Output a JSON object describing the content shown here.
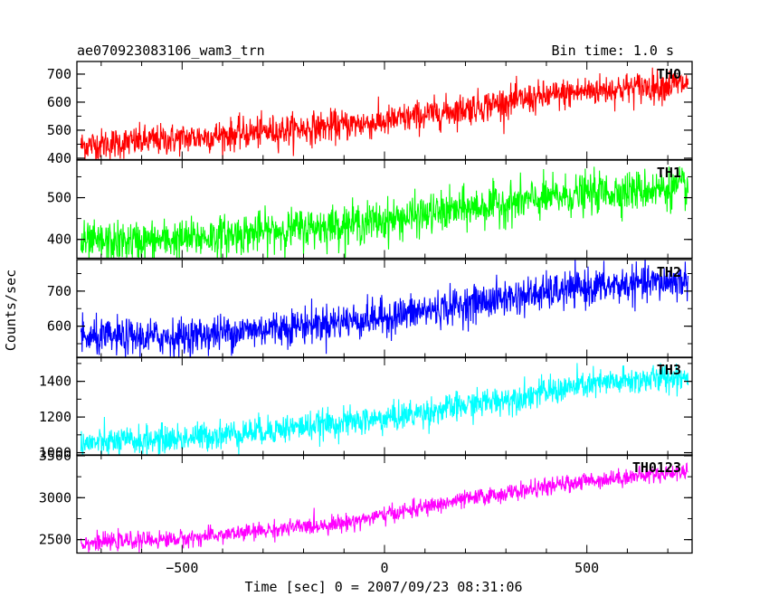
{
  "header": {
    "title": "ae070923083106_wam3_trn",
    "bin_time": "Bin time: 1.0 s"
  },
  "chart_data": [
    {
      "type": "line",
      "series": [
        {
          "name": "TH0",
          "color": "#ff0000"
        }
      ],
      "x_range": [
        -760,
        760
      ],
      "ylim": [
        395,
        745
      ],
      "yticks": [
        400,
        500,
        600,
        700
      ],
      "trend": {
        "x": [
          -750,
          -500,
          0,
          300,
          500,
          750
        ],
        "y": [
          445,
          470,
          530,
          600,
          640,
          665
        ]
      },
      "noise": 28
    },
    {
      "type": "line",
      "series": [
        {
          "name": "TH1",
          "color": "#00ff00"
        }
      ],
      "x_range": [
        -760,
        760
      ],
      "ylim": [
        355,
        590
      ],
      "yticks": [
        400,
        500
      ],
      "trend": {
        "x": [
          -750,
          -500,
          0,
          250,
          500,
          750
        ],
        "y": [
          390,
          400,
          445,
          480,
          510,
          525
        ]
      },
      "noise": 24
    },
    {
      "type": "line",
      "series": [
        {
          "name": "TH2",
          "color": "#0000ff"
        }
      ],
      "x_range": [
        -760,
        760
      ],
      "ylim": [
        510,
        790
      ],
      "yticks": [
        600,
        700
      ],
      "trend": {
        "x": [
          -750,
          -500,
          0,
          300,
          500,
          750
        ],
        "y": [
          565,
          570,
          625,
          680,
          710,
          730
        ]
      },
      "noise": 26
    },
    {
      "type": "line",
      "series": [
        {
          "name": "TH3",
          "color": "#00ffff"
        }
      ],
      "x_range": [
        -760,
        760
      ],
      "ylim": [
        985,
        1535
      ],
      "yticks": [
        1000,
        1200,
        1400
      ],
      "trend": {
        "x": [
          -750,
          -500,
          0,
          300,
          500,
          750
        ],
        "y": [
          1050,
          1080,
          1190,
          1300,
          1380,
          1430
        ]
      },
      "noise": 40
    },
    {
      "type": "line",
      "series": [
        {
          "name": "TH0123",
          "color": "#ff00ff"
        }
      ],
      "x_range": [
        -760,
        760
      ],
      "ylim": [
        2340,
        3510
      ],
      "yticks": [
        2500,
        3000,
        3500
      ],
      "trend": {
        "x": [
          -750,
          -500,
          -100,
          200,
          500,
          750
        ],
        "y": [
          2460,
          2510,
          2700,
          2980,
          3200,
          3320
        ]
      },
      "noise": 50
    }
  ],
  "x_axis": {
    "ticks": [
      -500,
      0,
      500
    ],
    "label": "Time [sec] 0 = 2007/09/23 08:31:06"
  },
  "y_axis": {
    "label": "Counts/sec"
  }
}
